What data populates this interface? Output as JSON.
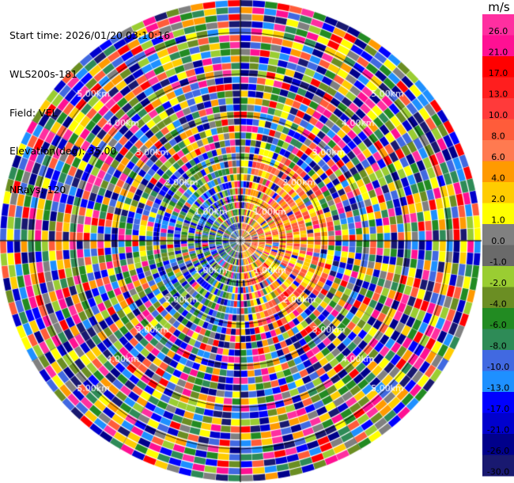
{
  "header": {
    "start_time": "Start time: 2026/01/20 03:10:16",
    "instrument": "WLS200s-181",
    "field": "Field: VEL",
    "elevation": "Elevation(deg): 35.00",
    "nrays": "NRays: 120"
  },
  "colorbar": {
    "unit": "m/s",
    "levels": [
      "26.0",
      "21.0",
      "17.0",
      "13.0",
      "10.0",
      "8.0",
      "6.0",
      "4.0",
      "2.0",
      "1.0",
      "0.0",
      "-1.0",
      "-2.0",
      "-4.0",
      "-6.0",
      "-8.0",
      "-10.0",
      "-13.0",
      "-17.0",
      "-21.0",
      "-26.0",
      "-30.0"
    ],
    "colors": [
      "#ff2fa0",
      "#ff1093",
      "#ff0000",
      "#ff1e1e",
      "#ff3a3a",
      "#ff5c3a",
      "#ff7a50",
      "#ff9a00",
      "#ffcc00",
      "#ffff00",
      "#808080",
      "#6a6a6a",
      "#9acd32",
      "#6b8e23",
      "#228b22",
      "#2e8b57",
      "#4169e1",
      "#1e90ff",
      "#0000ff",
      "#0000cd",
      "#00008b",
      "#191970"
    ]
  },
  "chart_data": {
    "type": "heatmap",
    "subtype": "polar PPI scan",
    "field": "VEL",
    "units": "m/s",
    "n_rays": 120,
    "elevation_deg": 35.0,
    "range_rings_km": [
      1.0,
      2.0,
      3.0,
      4.0,
      5.0
    ],
    "ring_labels": [
      "1.00km",
      "2.00km",
      "3.00km",
      "4.00km",
      "5.00km"
    ],
    "max_range_km": 5.8,
    "colorbar_ticks": [
      26.0,
      21.0,
      17.0,
      13.0,
      10.0,
      8.0,
      6.0,
      4.0,
      2.0,
      1.0,
      0.0,
      -1.0,
      -2.0,
      -4.0,
      -6.0,
      -8.0,
      -10.0,
      -13.0,
      -17.0,
      -21.0,
      -26.0,
      -30.0
    ],
    "pattern": "near-range: positive (warm) velocities east, negative (cool) velocities west; far-range: noisy random velocities"
  }
}
